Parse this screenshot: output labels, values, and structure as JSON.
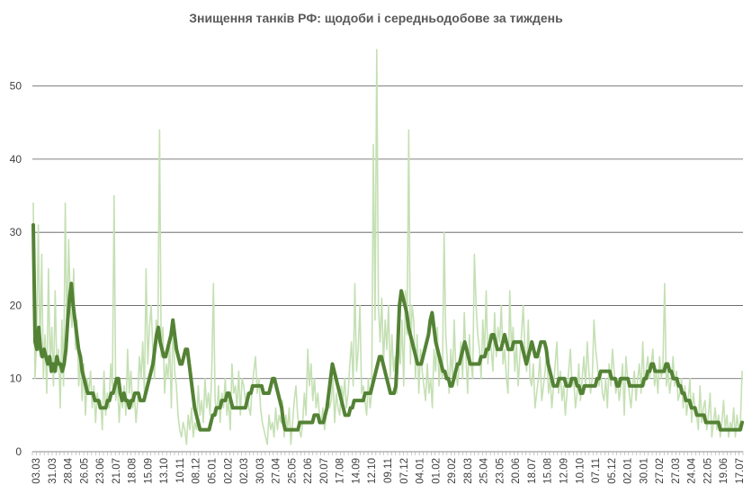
{
  "chart_data": {
    "type": "line",
    "title": "Знищення танків РФ: щодоби і середньодобове за тиждень",
    "xlabel": "",
    "ylabel": "",
    "ylim": [
      0,
      55
    ],
    "yticks": [
      0,
      10,
      20,
      30,
      40,
      50
    ],
    "grid": true,
    "legend": "none",
    "x_tick_labels": [
      "03.03",
      "31.03",
      "28.04",
      "26.05",
      "23.06",
      "21.07",
      "18.08",
      "15.09",
      "13.10",
      "10.11",
      "08.12",
      "05.01",
      "02.02",
      "02.03",
      "30.03",
      "27.04",
      "25.05",
      "22.06",
      "20.07",
      "17.08",
      "14.09",
      "12.10",
      "09.11",
      "07.12",
      "04.01",
      "01.02",
      "29.02",
      "28.03",
      "25.04",
      "23.05",
      "20.06",
      "18.07",
      "15.08",
      "12.09",
      "10.10",
      "07.11",
      "05.12",
      "02.01",
      "30.01",
      "27.02",
      "27.03",
      "24.04",
      "22.05",
      "19.06",
      "17.07"
    ],
    "colors": {
      "daily": "#c5e0b4",
      "weekly": "#548235"
    },
    "series": [
      {
        "name": "",
        "values": [
          34,
          10,
          15,
          31,
          13,
          27,
          10,
          16,
          8,
          25,
          12,
          17,
          9,
          22,
          11,
          14,
          6,
          18,
          9,
          34,
          15,
          29,
          20,
          17,
          25,
          14,
          18,
          9,
          13,
          7,
          12,
          5,
          10,
          8,
          11,
          6,
          9,
          4,
          8,
          6,
          7,
          3,
          11,
          5,
          8,
          6,
          12,
          9,
          35,
          7,
          10,
          4,
          8,
          6,
          9,
          5,
          14,
          8,
          11,
          6,
          8,
          4,
          7,
          13,
          10,
          15,
          8,
          25,
          12,
          17,
          20,
          14,
          10,
          18,
          16,
          44,
          13,
          17,
          8,
          12,
          10,
          15,
          6,
          18,
          11,
          9,
          5,
          3,
          2,
          4,
          3,
          1,
          5,
          3,
          6,
          2,
          4,
          3,
          9,
          5,
          7,
          4,
          10,
          6,
          8,
          5,
          11,
          23,
          7,
          5,
          9,
          4,
          8,
          6,
          10,
          5,
          7,
          3,
          12,
          8,
          9,
          6,
          11,
          5,
          10,
          9,
          7,
          8,
          6,
          5,
          9,
          11,
          13,
          8,
          10,
          6,
          4,
          3,
          2,
          1,
          5,
          3,
          4,
          2,
          6,
          3,
          5,
          4,
          7,
          2,
          5,
          3,
          6,
          1,
          4,
          7,
          9,
          5,
          3,
          2,
          4,
          8,
          5,
          14,
          9,
          12,
          7,
          10,
          6,
          8,
          5,
          4,
          6,
          3,
          5,
          8,
          6,
          7,
          10,
          4,
          8,
          6,
          5,
          9,
          7,
          10,
          6,
          8,
          12,
          15,
          9,
          23,
          11,
          14,
          20,
          8,
          9,
          7,
          5,
          10,
          6,
          8,
          42,
          18,
          55,
          20,
          15,
          21,
          12,
          18,
          14,
          20,
          10,
          16,
          11,
          13,
          8,
          15,
          12,
          18,
          9,
          22,
          16,
          44,
          12,
          20,
          18,
          10,
          16,
          8,
          14,
          11,
          9,
          7,
          12,
          8,
          10,
          6,
          14,
          11,
          17,
          9,
          13,
          10,
          30,
          16,
          12,
          8,
          14,
          10,
          18,
          11,
          9,
          12,
          15,
          10,
          19,
          13,
          8,
          16,
          12,
          10,
          27,
          20,
          16,
          14,
          10,
          18,
          13,
          22,
          12,
          16,
          14,
          11,
          19,
          13,
          17,
          15,
          20,
          12,
          14,
          10,
          8,
          22,
          14,
          17,
          11,
          15,
          9,
          13,
          16,
          20,
          14,
          11,
          18,
          10,
          9,
          12,
          6,
          8,
          10,
          13,
          7,
          9,
          11,
          14,
          8,
          10,
          6,
          9,
          12,
          15,
          8,
          11,
          7,
          9,
          5,
          8,
          11,
          14,
          9,
          10,
          6,
          8,
          12,
          7,
          10,
          13,
          9,
          15,
          11,
          8,
          10,
          18,
          14,
          12,
          9,
          11,
          8,
          7,
          10,
          6,
          12,
          9,
          14,
          11,
          8,
          10,
          7,
          9,
          12,
          5,
          13,
          10,
          8,
          6,
          9,
          11,
          7,
          10,
          12,
          8,
          15,
          9,
          11,
          13,
          10,
          12,
          14,
          9,
          11,
          8,
          13,
          10,
          12,
          23,
          9,
          11,
          8,
          10,
          13,
          9,
          11,
          7,
          8,
          10,
          6,
          9,
          5,
          7,
          10,
          4,
          8,
          6,
          5,
          3,
          9,
          4,
          6,
          7,
          3,
          5,
          8,
          2,
          4,
          6,
          3,
          5,
          2,
          4,
          7,
          3,
          5,
          2,
          4,
          3,
          6,
          2,
          5,
          3,
          4,
          11
        ]
      },
      {
        "name": "",
        "values": [
          31,
          15,
          14,
          17,
          14,
          13,
          14,
          13,
          12,
          13,
          11,
          12,
          11,
          13,
          12,
          12,
          11,
          12,
          14,
          18,
          21,
          23,
          20,
          18,
          16,
          14,
          13,
          11,
          10,
          9,
          8,
          8,
          8,
          8,
          7,
          7,
          7,
          6,
          6,
          6,
          6,
          7,
          7,
          8,
          8,
          9,
          10,
          10,
          8,
          7,
          8,
          7,
          7,
          6,
          7,
          7,
          8,
          8,
          8,
          7,
          7,
          7,
          8,
          9,
          10,
          11,
          12,
          14,
          16,
          17,
          15,
          14,
          13,
          13,
          14,
          15,
          16,
          18,
          16,
          14,
          13,
          12,
          12,
          13,
          14,
          14,
          12,
          10,
          8,
          6,
          5,
          4,
          3,
          3,
          3,
          3,
          3,
          3,
          4,
          5,
          5,
          6,
          6,
          6,
          7,
          7,
          7,
          8,
          8,
          7,
          6,
          6,
          6,
          6,
          6,
          6,
          6,
          6,
          7,
          8,
          8,
          9,
          9,
          9,
          9,
          9,
          9,
          8,
          8,
          8,
          8,
          9,
          10,
          10,
          9,
          8,
          7,
          6,
          4,
          3,
          3,
          3,
          3,
          3,
          3,
          3,
          3,
          4,
          4,
          4,
          4,
          4,
          4,
          4,
          4,
          5,
          5,
          5,
          4,
          4,
          4,
          5,
          6,
          8,
          10,
          12,
          11,
          10,
          9,
          8,
          7,
          6,
          5,
          5,
          5,
          6,
          6,
          7,
          7,
          7,
          7,
          7,
          7,
          8,
          8,
          8,
          8,
          9,
          10,
          11,
          12,
          13,
          13,
          12,
          11,
          10,
          9,
          8,
          8,
          8,
          9,
          14,
          20,
          22,
          21,
          20,
          19,
          17,
          16,
          15,
          14,
          13,
          12,
          12,
          12,
          13,
          14,
          15,
          16,
          18,
          19,
          17,
          15,
          14,
          13,
          12,
          11,
          11,
          10,
          10,
          9,
          9,
          10,
          11,
          12,
          12,
          13,
          14,
          15,
          14,
          13,
          12,
          12,
          12,
          12,
          12,
          12,
          13,
          13,
          13,
          14,
          14,
          15,
          16,
          16,
          15,
          14,
          14,
          14,
          15,
          16,
          15,
          14,
          14,
          14,
          15,
          15,
          15,
          15,
          15,
          14,
          13,
          12,
          13,
          14,
          15,
          14,
          13,
          13,
          14,
          15,
          15,
          15,
          14,
          12,
          11,
          10,
          9,
          9,
          9,
          10,
          10,
          10,
          10,
          9,
          9,
          9,
          10,
          10,
          10,
          9,
          9,
          8,
          8,
          9,
          9,
          9,
          9,
          9,
          9,
          9,
          10,
          10,
          11,
          11,
          11,
          11,
          11,
          11,
          10,
          10,
          10,
          9,
          9,
          10,
          10,
          10,
          10,
          10,
          9,
          9,
          9,
          9,
          9,
          9,
          9,
          9,
          10,
          10,
          11,
          11,
          12,
          12,
          11,
          11,
          11,
          11,
          11,
          11,
          12,
          12,
          11,
          11,
          10,
          10,
          10,
          9,
          9,
          8,
          8,
          7,
          7,
          7,
          6,
          6,
          6,
          5,
          5,
          5,
          5,
          5,
          4,
          4,
          4,
          4,
          4,
          4,
          4,
          4,
          3,
          3,
          3,
          3,
          3,
          3,
          3,
          3,
          3,
          3,
          3,
          3,
          4
        ]
      }
    ]
  }
}
